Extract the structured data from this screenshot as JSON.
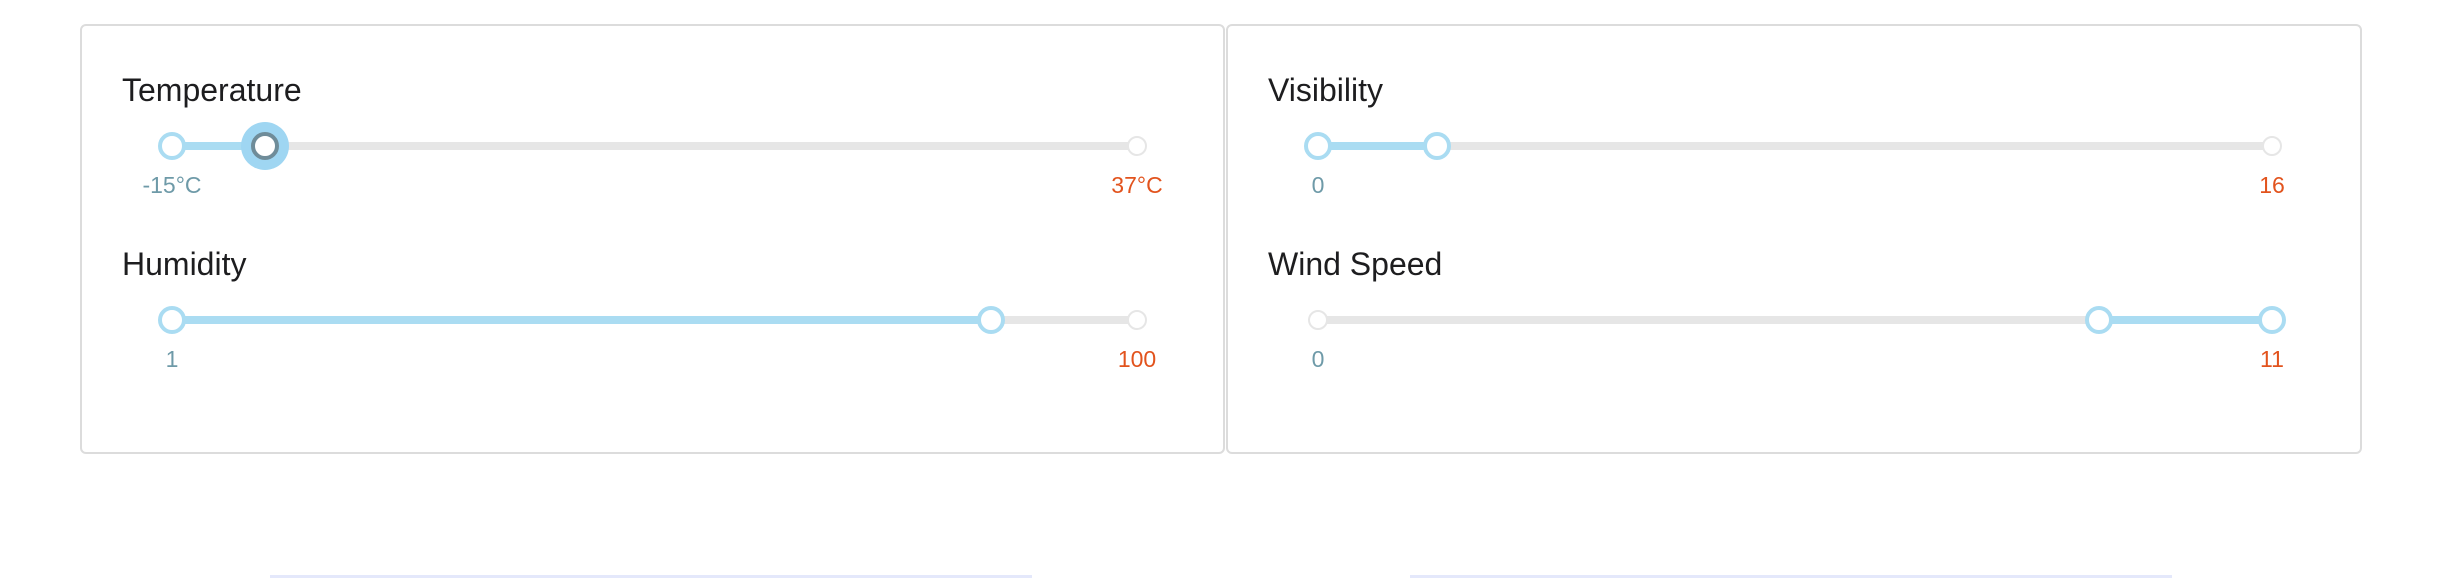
{
  "panels": [
    {
      "sliders": [
        {
          "label": "Temperature",
          "min_label": "-15°C",
          "max_label": "37°C",
          "range": [
            -15,
            37
          ],
          "low": -15,
          "high": -10,
          "focused_handle": "high"
        },
        {
          "label": "Humidity",
          "min_label": "1",
          "max_label": "100",
          "range": [
            1,
            100
          ],
          "low": 1,
          "high": 85,
          "focused_handle": null
        }
      ]
    },
    {
      "sliders": [
        {
          "label": "Visibility",
          "min_label": "0",
          "max_label": "16",
          "range": [
            0,
            16
          ],
          "low": 0,
          "high": 2,
          "focused_handle": null
        },
        {
          "label": "Wind Speed",
          "min_label": "0",
          "max_label": "11",
          "range": [
            0,
            11
          ],
          "low": 9,
          "high": 11,
          "focused_handle": null
        }
      ]
    }
  ],
  "colors": {
    "fill": "#aadcf2",
    "track": "#e6e6e6",
    "min_label": "#6e9aa8",
    "max_label": "#e2531d"
  }
}
